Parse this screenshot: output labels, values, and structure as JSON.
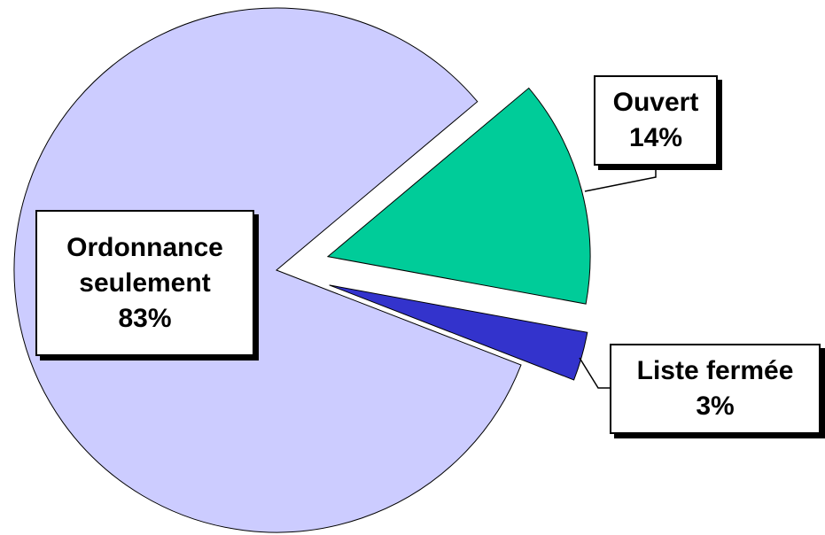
{
  "chart_data": {
    "type": "pie",
    "categories": [
      "Ouvert",
      "Liste fermée",
      "Ordonnance seulement"
    ],
    "values": [
      14,
      3,
      83
    ],
    "value_labels": [
      "14%",
      "3%",
      "83%"
    ],
    "colors": [
      "#00cc99",
      "#3333cc",
      "#ccccff"
    ]
  }
}
